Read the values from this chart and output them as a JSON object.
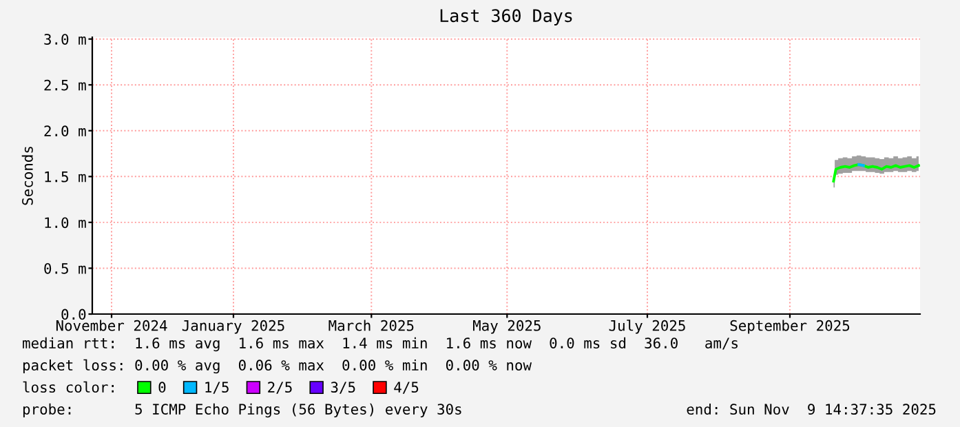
{
  "chart_data": {
    "type": "line",
    "title": "Last 360 Days",
    "ylabel": "Seconds",
    "legend_title": "loss color:",
    "x": [
      "2025-10-03",
      "2025-10-04",
      "2025-10-06",
      "2025-10-08",
      "2025-10-10",
      "2025-10-12",
      "2025-10-14",
      "2025-10-16",
      "2025-10-18",
      "2025-10-20",
      "2025-10-22",
      "2025-10-24",
      "2025-10-26",
      "2025-10-28",
      "2025-10-30",
      "2025-11-01",
      "2025-11-03",
      "2025-11-05",
      "2025-11-07",
      "2025-11-09"
    ],
    "series": [
      {
        "name": "0",
        "color": "#00ff00",
        "values": [
          1.45,
          1.58,
          1.6,
          1.61,
          1.6,
          1.62,
          1.63,
          1.62,
          1.6,
          1.61,
          1.6,
          1.58,
          1.61,
          1.6,
          1.62,
          1.6,
          1.61,
          1.62,
          1.6,
          1.62
        ],
        "lower": [
          1.38,
          1.52,
          1.53,
          1.54,
          1.54,
          1.56,
          1.56,
          1.56,
          1.55,
          1.55,
          1.54,
          1.53,
          1.55,
          1.55,
          1.56,
          1.55,
          1.55,
          1.56,
          1.55,
          1.56
        ],
        "upper": [
          1.52,
          1.68,
          1.7,
          1.71,
          1.7,
          1.72,
          1.73,
          1.72,
          1.71,
          1.71,
          1.7,
          1.69,
          1.71,
          1.7,
          1.72,
          1.7,
          1.71,
          1.72,
          1.7,
          1.72
        ]
      },
      {
        "name": "1/5",
        "color": "#00b8ff",
        "values": [
          null,
          null,
          null,
          null,
          null,
          null,
          1.63,
          1.62,
          null,
          null,
          null,
          null,
          null,
          null,
          null,
          null,
          null,
          null,
          null,
          null
        ]
      },
      {
        "name": "2/5",
        "color": "#cc00ff",
        "values": [
          null,
          null,
          null,
          null,
          null,
          null,
          null,
          null,
          null,
          null,
          null,
          null,
          null,
          null,
          null,
          null,
          null,
          null,
          null,
          null
        ]
      },
      {
        "name": "3/5",
        "color": "#6600ff",
        "values": [
          null,
          null,
          null,
          null,
          null,
          null,
          null,
          null,
          null,
          null,
          null,
          null,
          null,
          null,
          null,
          null,
          null,
          null,
          null,
          null
        ]
      },
      {
        "name": "4/5",
        "color": "#ff0000",
        "values": [
          null,
          null,
          null,
          null,
          null,
          null,
          null,
          null,
          null,
          null,
          null,
          null,
          null,
          null,
          null,
          null,
          null,
          null,
          null,
          null
        ]
      }
    ],
    "xlim": [
      "2024-11-14T14:37",
      "2025-11-09T14:37"
    ],
    "xticks": [
      {
        "value": "2024-11-23",
        "label": "November 2024"
      },
      {
        "value": "2025-01-15",
        "label": "January 2025"
      },
      {
        "value": "2025-03-16",
        "label": "March 2025"
      },
      {
        "value": "2025-05-14",
        "label": "May 2025"
      },
      {
        "value": "2025-07-14",
        "label": "July 2025"
      },
      {
        "value": "2025-09-14",
        "label": "September 2025"
      }
    ],
    "ylim": [
      0,
      3.02
    ],
    "yticks": [
      {
        "value": 0,
        "label": "0.0"
      },
      {
        "value": 0.5,
        "label": "0.5 m"
      },
      {
        "value": 1.0,
        "label": "1.0 m"
      },
      {
        "value": 1.5,
        "label": "1.5 m"
      },
      {
        "value": 2.0,
        "label": "2.0 m"
      },
      {
        "value": 2.5,
        "label": "2.5 m"
      },
      {
        "value": 3.0,
        "label": "3.0 m"
      }
    ],
    "grid": true,
    "legend": "bottom",
    "marker": "none",
    "line_style": "solid",
    "annotations": [
      "median rtt:  1.6 ms avg  1.6 ms max  1.4 ms min  1.6 ms now  0.0 ms sd  36.0   am/s",
      "packet loss: 0.00 % avg  0.06 % max  0.00 % min  0.00 % now",
      "probe:       5 ICMP Echo Pings (56 Bytes) every 30s",
      "end: Sun Nov  9 14:37:35 2025"
    ]
  }
}
